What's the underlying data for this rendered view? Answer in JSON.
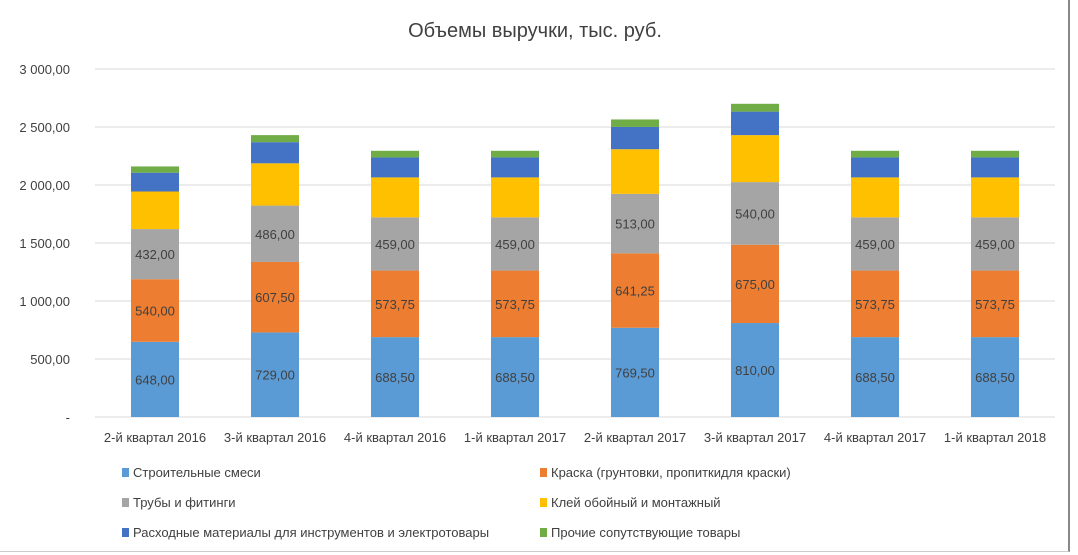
{
  "chart_data": {
    "type": "bar",
    "stacked": true,
    "title": "Объемы выручки, тыс. руб.",
    "categories": [
      "2-й квартал 2016",
      "3-й квартал 2016",
      "4-й квартал 2016",
      "1-й квартал 2017",
      "2-й квартал 2017",
      "3-й квартал 2017",
      "4-й квартал 2017",
      "1-й квартал 2018"
    ],
    "ylim": [
      0,
      3000
    ],
    "yticks": [
      0,
      500,
      1000,
      1500,
      2000,
      2500,
      3000
    ],
    "ytick_labels": [
      "-",
      "500,00",
      "1 000,00",
      "1 500,00",
      "2 000,00",
      "2 500,00",
      "3 000,00"
    ],
    "grid": true,
    "legend_placement": "bottom",
    "series": [
      {
        "name": "Строительные смеси",
        "color": "#5B9BD5",
        "labels": true,
        "values": [
          648,
          729,
          688.5,
          688.5,
          769.5,
          810,
          688.5,
          688.5
        ],
        "value_labels": [
          "648,00",
          "729,00",
          "688,50",
          "688,50",
          "769,50",
          "810,00",
          "688,50",
          "688,50"
        ]
      },
      {
        "name": "Краска (грунтовки, пропиткидля краски)",
        "color": "#ED7D31",
        "labels": true,
        "values": [
          540,
          607.5,
          573.75,
          573.75,
          641.25,
          675,
          573.75,
          573.75
        ],
        "value_labels": [
          "540,00",
          "607,50",
          "573,75",
          "573,75",
          "641,25",
          "675,00",
          "573,75",
          "573,75"
        ]
      },
      {
        "name": "Трубы и фитинги",
        "color": "#A5A5A5",
        "labels": true,
        "values": [
          432,
          486,
          459,
          459,
          513,
          540,
          459,
          459
        ],
        "value_labels": [
          "432,00",
          "486,00",
          "459,00",
          "459,00",
          "513,00",
          "540,00",
          "459,00",
          "459,00"
        ]
      },
      {
        "name": "Клей обойный и монтажный",
        "color": "#FFC000",
        "labels": false,
        "values": [
          324,
          364.5,
          344.25,
          344.25,
          384.75,
          405,
          344.25,
          344.25
        ]
      },
      {
        "name": "Расходные материалы для инструментов и электротовары",
        "color": "#4472C4",
        "labels": false,
        "values": [
          162,
          182.25,
          172.13,
          172.13,
          192.38,
          202.5,
          172.13,
          172.13
        ]
      },
      {
        "name": "Прочие сопутствующие товары",
        "color": "#70AD47",
        "labels": false,
        "values": [
          54,
          60.75,
          57.38,
          57.38,
          64.13,
          67.5,
          57.38,
          57.38
        ]
      }
    ]
  }
}
